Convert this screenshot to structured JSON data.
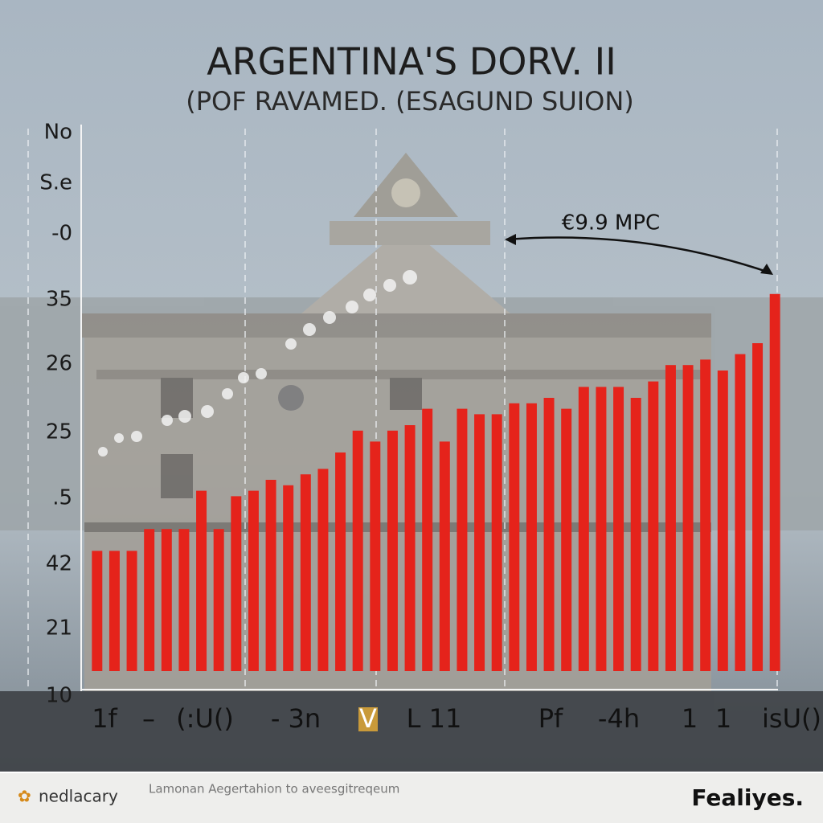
{
  "chart_data": {
    "type": "bar",
    "title": "ARGENTINA'S DORV. II",
    "subtitle": "(POF RAVAMED. (ESAGUND SUION)",
    "annotation": "€9.9 MPC",
    "y_axis_labels": [
      "No",
      "S.e",
      "-0",
      "35",
      "26",
      "25",
      ".5",
      "42",
      "21",
      "10"
    ],
    "x_axis_labels": [
      "1f",
      "–",
      "(:U()",
      "- 3n",
      "V",
      "L 11",
      "Pf",
      "-4h",
      "1",
      "1",
      "isU()"
    ],
    "values": [
      22,
      22,
      22,
      26,
      26,
      26,
      33,
      26,
      32,
      33,
      35,
      34,
      36,
      37,
      40,
      44,
      42,
      44,
      45,
      48,
      42,
      48,
      47,
      47,
      49,
      49,
      50,
      48,
      52,
      52,
      52,
      50,
      53,
      56,
      56,
      57,
      55,
      58,
      60,
      69
    ],
    "color": "#e5231b",
    "ylim": [
      0,
      100
    ]
  },
  "footer": {
    "brand_left": "nedlacary",
    "caption": "Lamonan Aegertahion to aveesgitreqeum",
    "brand_right": "Fealiyes."
  }
}
